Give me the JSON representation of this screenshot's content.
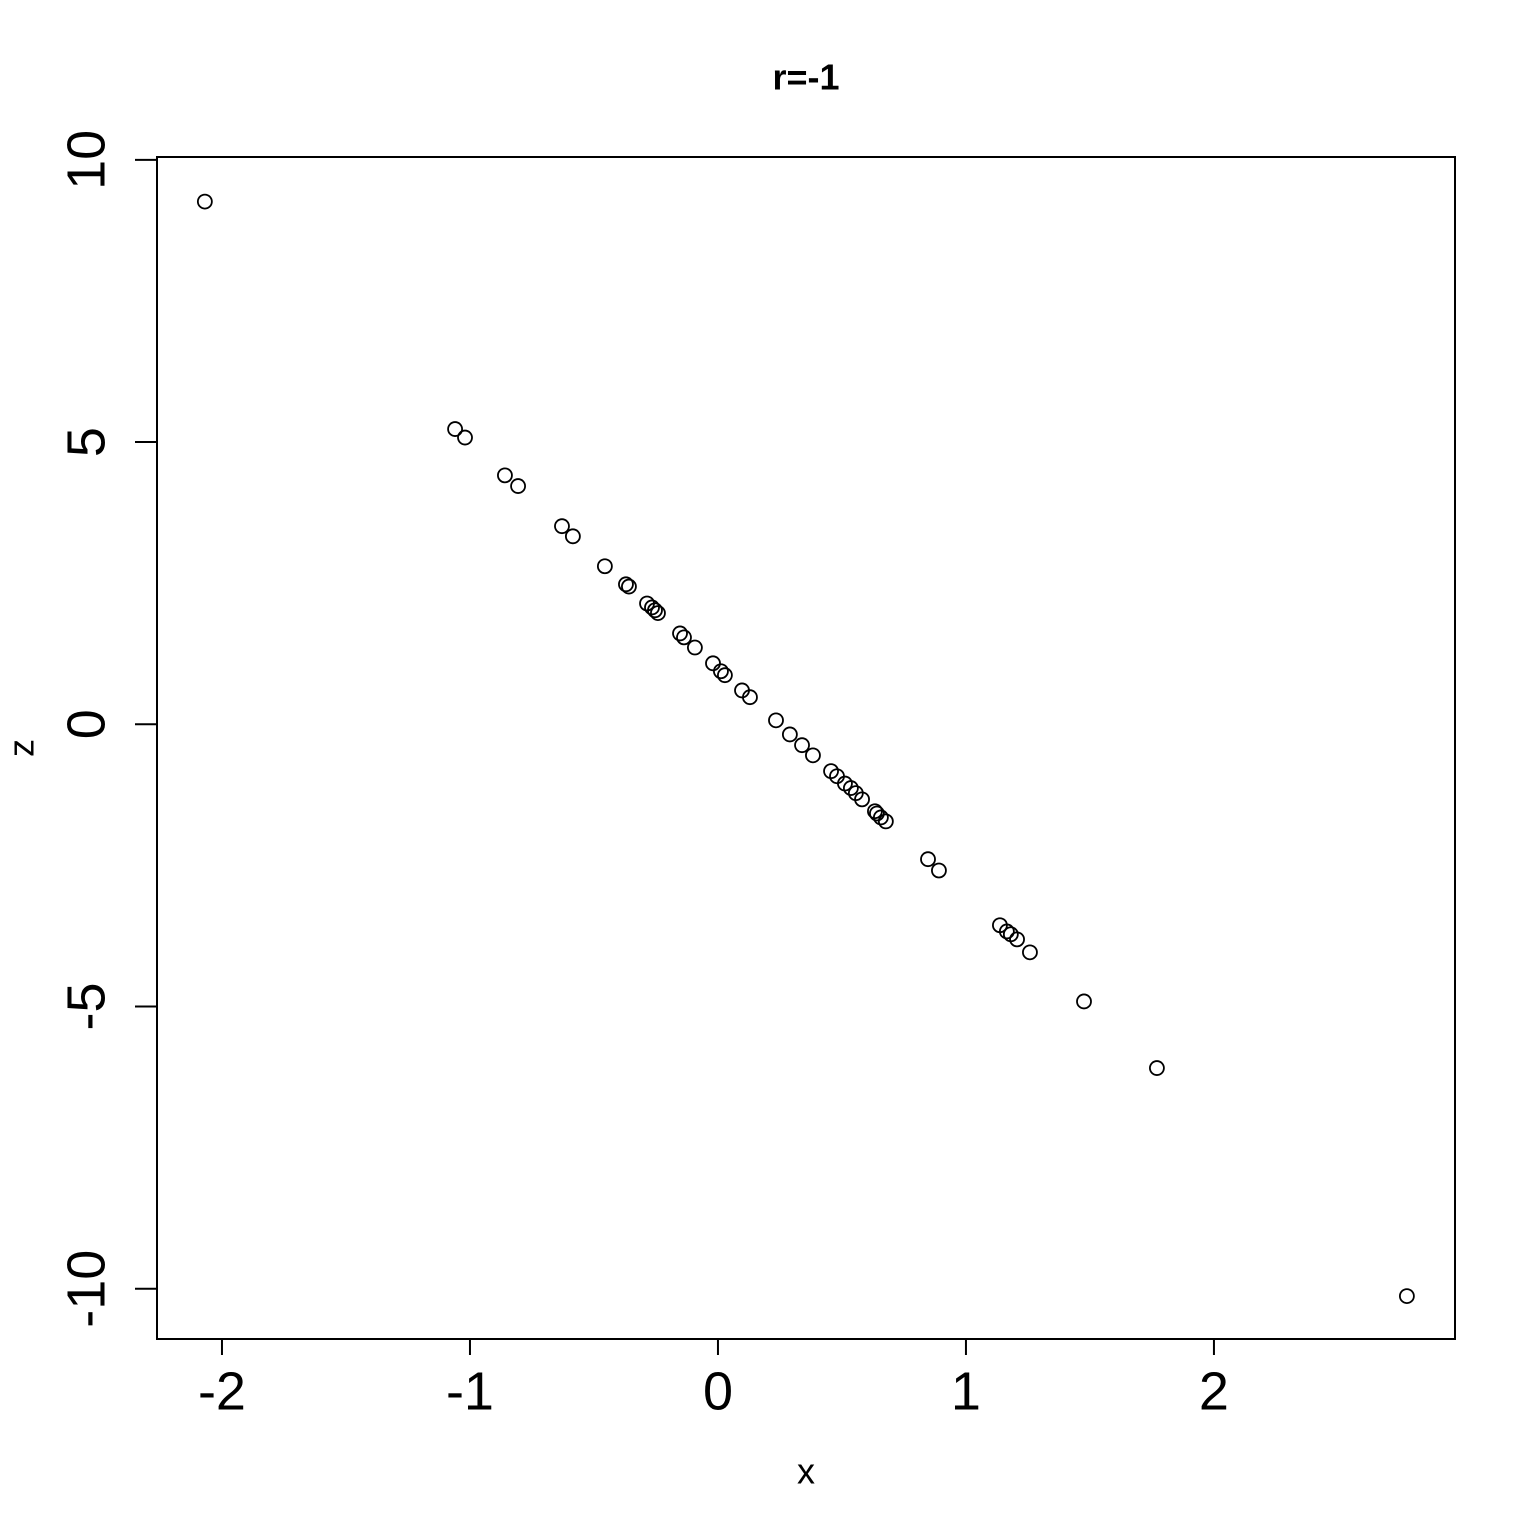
{
  "chart_data": {
    "type": "scatter",
    "title": "r=-1",
    "x_label": "x",
    "y_label": "z",
    "xlim": [
      -2.262,
      2.972
    ],
    "ylim": [
      -10.89,
      10.05
    ],
    "xticks": [
      -2,
      -1,
      0,
      1,
      2
    ],
    "yticks": [
      -10,
      -5,
      0,
      5,
      10
    ],
    "color": "#000000",
    "x": [
      -2.069,
      -1.06,
      -1.02,
      -0.859,
      -0.806,
      -0.629,
      -0.585,
      -0.456,
      -0.371,
      -0.359,
      -0.286,
      -0.266,
      -0.254,
      -0.242,
      -0.153,
      -0.137,
      -0.093,
      -0.02,
      0.012,
      0.028,
      0.097,
      0.129,
      0.234,
      0.29,
      0.339,
      0.383,
      0.456,
      0.48,
      0.512,
      0.536,
      0.556,
      0.581,
      0.633,
      0.641,
      0.657,
      0.677,
      0.847,
      0.891,
      1.137,
      1.165,
      1.181,
      1.206,
      1.258,
      1.476,
      1.77,
      2.778
    ],
    "values": [
      9.26,
      5.23,
      5.08,
      4.41,
      4.22,
      3.51,
      3.33,
      2.8,
      2.48,
      2.44,
      2.14,
      2.07,
      2.02,
      1.97,
      1.61,
      1.54,
      1.36,
      1.08,
      0.94,
      0.87,
      0.6,
      0.48,
      0.07,
      -0.18,
      -0.37,
      -0.55,
      -0.83,
      -0.92,
      -1.05,
      -1.13,
      -1.22,
      -1.33,
      -1.54,
      -1.58,
      -1.65,
      -1.72,
      -2.39,
      -2.59,
      -3.56,
      -3.67,
      -3.72,
      -3.81,
      -4.04,
      -4.91,
      -6.09,
      -10.13
    ]
  }
}
